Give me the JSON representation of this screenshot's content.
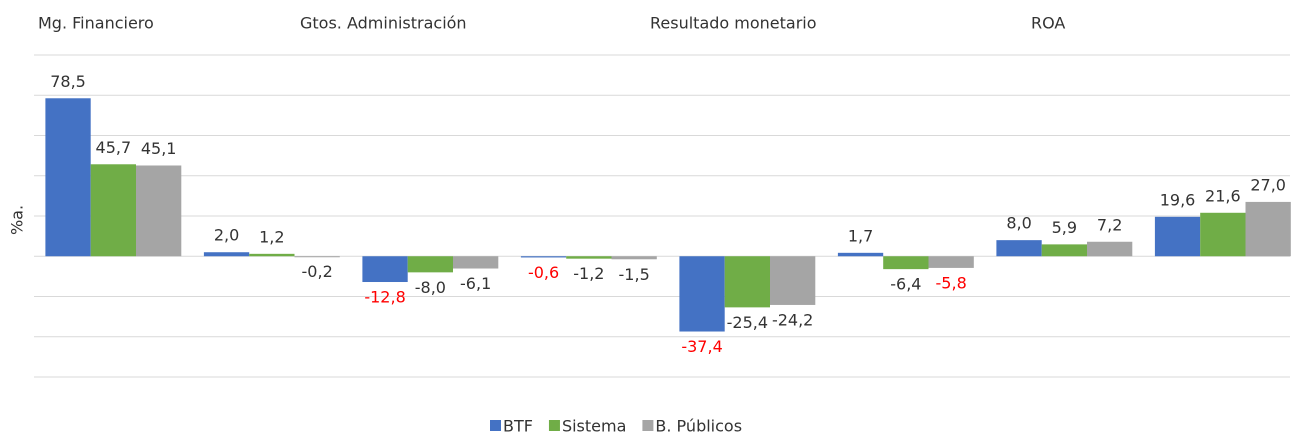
{
  "chart_data": {
    "type": "bar",
    "group_labels": [
      "Mg. Financiero",
      "Gtos. Administración",
      "Resultado monetario",
      "ROA"
    ],
    "ylabel": "%a.",
    "categories": [
      null,
      null,
      null,
      null,
      null,
      null,
      null,
      null
    ],
    "series": [
      {
        "name": "BTF",
        "color": "#4472c4",
        "values": [
          78.5,
          2.0,
          -12.8,
          -0.6,
          -37.4,
          1.7,
          8.0,
          19.6
        ],
        "value_labels": [
          "78,5",
          "2,0",
          "-12,8",
          "-0,6",
          "-37,4",
          "1,7",
          "8,0",
          "19,6"
        ],
        "label_colors": [
          "#333333",
          "#333333",
          "#ff0000",
          "#ff0000",
          "#ff0000",
          "#333333",
          "#333333",
          "#333333"
        ]
      },
      {
        "name": "Sistema",
        "color": "#70ad47",
        "values": [
          45.7,
          1.2,
          -8.0,
          -1.2,
          -25.4,
          -6.4,
          5.9,
          21.6
        ],
        "value_labels": [
          "45,7",
          "1,2",
          "-8,0",
          "-1,2",
          "-25,4",
          "-6,4",
          "5,9",
          "21,6"
        ],
        "label_colors": [
          "#333333",
          "#333333",
          "#333333",
          "#333333",
          "#333333",
          "#333333",
          "#333333",
          "#333333"
        ]
      },
      {
        "name": "B. Públicos",
        "color": "#a5a5a5",
        "values": [
          45.1,
          -0.2,
          -6.1,
          -1.5,
          -24.2,
          -5.8,
          7.2,
          27.0
        ],
        "value_labels": [
          "45,1",
          "-0,2",
          "-6,1",
          "-1,5",
          "-24,2",
          "-5,8",
          "7,2",
          "27,0"
        ],
        "label_colors": [
          "#333333",
          "#333333",
          "#333333",
          "#333333",
          "#333333",
          "#ff0000",
          "#333333",
          "#333333"
        ]
      }
    ],
    "ylim": [
      -60,
      100
    ],
    "yticks": [
      -60,
      -40,
      -20,
      0,
      20,
      40,
      60,
      80,
      100
    ],
    "grid": true,
    "legend": "bottom"
  }
}
